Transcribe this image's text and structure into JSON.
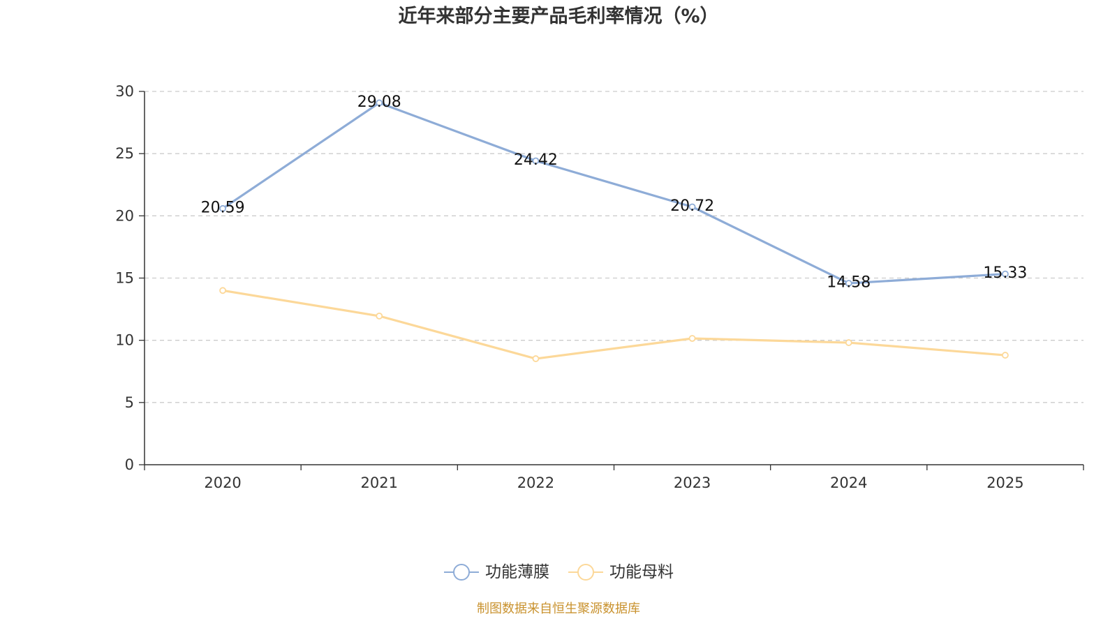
{
  "chart_data": {
    "type": "line",
    "title": "近年来部分主要产品毛利率情况（%）",
    "categories": [
      "2020",
      "2021",
      "2022",
      "2023",
      "2024",
      "2025"
    ],
    "xlabel": "",
    "ylabel": "",
    "ylim": [
      0,
      30
    ],
    "yticks": [
      0,
      5,
      10,
      15,
      20,
      25,
      30
    ],
    "grid": true,
    "legend_position": "bottom-center",
    "series": [
      {
        "name": "功能薄膜",
        "color": "#8eacd7",
        "values": [
          20.59,
          29.08,
          24.42,
          20.72,
          14.58,
          15.33
        ],
        "labels_shown": true
      },
      {
        "name": "功能母料",
        "color": "#fcd899",
        "values": [
          14.0,
          11.95,
          8.52,
          10.15,
          9.81,
          8.8
        ],
        "labels_shown": false
      }
    ]
  },
  "source": "制图数据来自恒生聚源数据库"
}
